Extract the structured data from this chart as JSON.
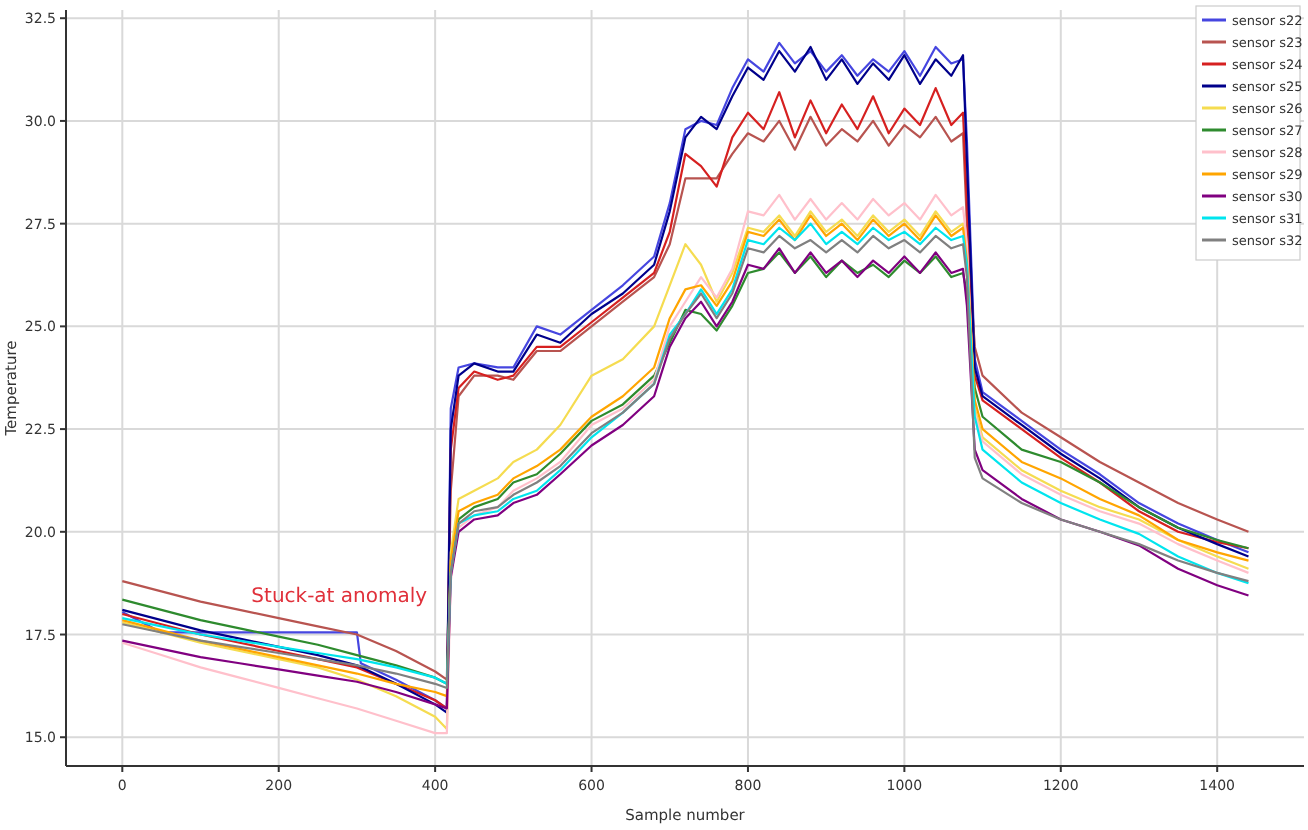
{
  "chart_data": {
    "type": "line",
    "xlabel": "Sample number",
    "ylabel": "Temperature",
    "xlim": [
      -72,
      1511
    ],
    "ylim": [
      14.3,
      32.7
    ],
    "xticks": [
      0,
      200,
      400,
      600,
      800,
      1000,
      1200,
      1400
    ],
    "yticks": [
      {
        "value": 15,
        "label": "15.0"
      },
      {
        "value": 17.5,
        "label": "17.5"
      },
      {
        "value": 20,
        "label": "20.0"
      },
      {
        "value": 22.5,
        "label": "22.5"
      },
      {
        "value": 25,
        "label": "25.0"
      },
      {
        "value": 27.5,
        "label": "27.5"
      },
      {
        "value": 30,
        "label": "30.0"
      },
      {
        "value": 32.5,
        "label": "32.5"
      }
    ],
    "grid": true,
    "legend": "top right",
    "line_style": "solid",
    "marker": "none",
    "annotations": [
      {
        "text": "Stuck-at anomaly",
        "x": 165,
        "y": 18.3
      }
    ],
    "x": [
      0,
      50,
      100,
      150,
      200,
      250,
      300,
      350,
      400,
      415,
      420,
      430,
      450,
      480,
      500,
      530,
      560,
      600,
      640,
      680,
      700,
      720,
      740,
      760,
      780,
      800,
      820,
      840,
      860,
      880,
      900,
      920,
      940,
      960,
      980,
      1000,
      1020,
      1040,
      1060,
      1075,
      1080,
      1090,
      1100,
      1150,
      1200,
      1250,
      1300,
      1350,
      1400,
      1440
    ],
    "series": [
      {
        "name": "sensor s22",
        "color": "#4646e0",
        "x": [
          0,
          50,
          100,
          150,
          200,
          250,
          300,
          305,
          350,
          400,
          415,
          420,
          430,
          450,
          480,
          500,
          530,
          560,
          600,
          640,
          680,
          700,
          720,
          740,
          760,
          780,
          800,
          820,
          840,
          860,
          880,
          900,
          920,
          940,
          960,
          980,
          1000,
          1020,
          1040,
          1060,
          1075,
          1080,
          1090,
          1100,
          1150,
          1200,
          1250,
          1300,
          1350,
          1400,
          1440
        ],
        "values": [
          18.05,
          17.55,
          17.55,
          17.55,
          17.55,
          17.55,
          17.55,
          16.8,
          16.4,
          15.9,
          15.7,
          23.0,
          24.0,
          24.1,
          24.0,
          24.0,
          25.0,
          24.8,
          25.4,
          26.0,
          26.7,
          28.0,
          29.8,
          30.0,
          29.9,
          30.8,
          31.5,
          31.2,
          31.9,
          31.4,
          31.7,
          31.2,
          31.6,
          31.1,
          31.5,
          31.2,
          31.7,
          31.1,
          31.8,
          31.4,
          31.5,
          29.5,
          24.2,
          23.4,
          22.7,
          22.0,
          21.4,
          20.7,
          20.2,
          19.8,
          19.5
        ]
      },
      {
        "name": "sensor s23",
        "color": "#b85450",
        "values": [
          18.8,
          18.55,
          18.3,
          18.1,
          17.9,
          17.7,
          17.5,
          17.1,
          16.6,
          16.4,
          21.0,
          23.3,
          23.8,
          23.8,
          23.7,
          24.4,
          24.4,
          25.0,
          25.6,
          26.2,
          27.0,
          28.6,
          28.6,
          28.6,
          29.2,
          29.7,
          29.5,
          30.0,
          29.3,
          30.1,
          29.4,
          29.8,
          29.5,
          30.0,
          29.4,
          29.9,
          29.6,
          30.1,
          29.5,
          29.7,
          27.5,
          24.5,
          23.8,
          22.9,
          22.3,
          21.7,
          21.2,
          20.7,
          20.3,
          20.0
        ]
      },
      {
        "name": "sensor s24",
        "color": "#d62020",
        "values": [
          18.0,
          17.75,
          17.5,
          17.3,
          17.1,
          16.9,
          16.7,
          16.3,
          15.9,
          15.7,
          22.0,
          23.5,
          23.9,
          23.7,
          23.8,
          24.5,
          24.5,
          25.1,
          25.7,
          26.3,
          27.3,
          29.2,
          28.9,
          28.4,
          29.6,
          30.2,
          29.8,
          30.7,
          29.6,
          30.5,
          29.7,
          30.4,
          29.8,
          30.6,
          29.7,
          30.3,
          29.9,
          30.8,
          29.9,
          30.2,
          28.0,
          23.8,
          23.2,
          22.5,
          21.8,
          21.2,
          20.5,
          20.0,
          19.75,
          19.6
        ]
      },
      {
        "name": "sensor s25",
        "color": "#00008b",
        "values": [
          18.1,
          17.85,
          17.6,
          17.4,
          17.2,
          17.0,
          16.75,
          16.3,
          15.8,
          15.6,
          22.5,
          23.8,
          24.1,
          23.9,
          23.9,
          24.8,
          24.6,
          25.3,
          25.8,
          26.5,
          27.8,
          29.6,
          30.1,
          29.8,
          30.6,
          31.3,
          31.0,
          31.7,
          31.2,
          31.8,
          31.0,
          31.5,
          30.9,
          31.4,
          31.0,
          31.6,
          30.9,
          31.5,
          31.1,
          31.6,
          29.0,
          24.0,
          23.3,
          22.6,
          21.9,
          21.3,
          20.6,
          20.1,
          19.7,
          19.4
        ]
      },
      {
        "name": "sensor s26",
        "color": "#f5dc50",
        "values": [
          17.8,
          17.55,
          17.3,
          17.1,
          16.9,
          16.7,
          16.4,
          16.0,
          15.5,
          15.2,
          19.5,
          20.8,
          21.0,
          21.3,
          21.7,
          22.0,
          22.6,
          23.8,
          24.2,
          25.0,
          26.0,
          27.0,
          26.5,
          25.6,
          26.3,
          27.4,
          27.3,
          27.7,
          27.2,
          27.8,
          27.3,
          27.6,
          27.2,
          27.7,
          27.3,
          27.6,
          27.2,
          27.8,
          27.3,
          27.5,
          26.8,
          23.0,
          22.3,
          21.5,
          21.0,
          20.6,
          20.3,
          19.8,
          19.4,
          19.1
        ]
      },
      {
        "name": "sensor s27",
        "color": "#2e8b2e",
        "values": [
          18.35,
          18.1,
          17.85,
          17.65,
          17.45,
          17.25,
          17.0,
          16.75,
          16.45,
          16.3,
          19.2,
          20.3,
          20.6,
          20.8,
          21.2,
          21.4,
          21.9,
          22.7,
          23.1,
          23.8,
          24.6,
          25.4,
          25.3,
          24.9,
          25.5,
          26.3,
          26.4,
          26.8,
          26.3,
          26.7,
          26.2,
          26.6,
          26.3,
          26.5,
          26.2,
          26.6,
          26.3,
          26.7,
          26.2,
          26.3,
          25.8,
          23.5,
          22.8,
          22.0,
          21.7,
          21.2,
          20.6,
          20.1,
          19.8,
          19.6
        ]
      },
      {
        "name": "sensor s28",
        "color": "#ffc0cb",
        "values": [
          17.3,
          17.0,
          16.7,
          16.45,
          16.2,
          15.95,
          15.7,
          15.4,
          15.1,
          15.1,
          18.8,
          20.1,
          20.4,
          20.6,
          21.0,
          21.3,
          21.7,
          22.6,
          23.0,
          23.7,
          25.0,
          25.6,
          26.2,
          25.7,
          26.4,
          27.8,
          27.7,
          28.2,
          27.6,
          28.1,
          27.6,
          28.0,
          27.6,
          28.1,
          27.7,
          28.0,
          27.6,
          28.2,
          27.7,
          27.9,
          27.0,
          22.9,
          22.2,
          21.4,
          20.9,
          20.5,
          20.2,
          19.7,
          19.3,
          19.0
        ]
      },
      {
        "name": "sensor s29",
        "color": "#ffa500",
        "values": [
          17.85,
          17.6,
          17.35,
          17.15,
          16.95,
          16.75,
          16.55,
          16.3,
          16.1,
          16.0,
          19.3,
          20.5,
          20.7,
          20.9,
          21.3,
          21.6,
          22.0,
          22.8,
          23.3,
          24.0,
          25.2,
          25.9,
          26.0,
          25.5,
          26.1,
          27.3,
          27.2,
          27.6,
          27.1,
          27.7,
          27.2,
          27.5,
          27.1,
          27.6,
          27.2,
          27.5,
          27.1,
          27.7,
          27.2,
          27.4,
          26.6,
          23.2,
          22.5,
          21.7,
          21.3,
          20.8,
          20.4,
          19.8,
          19.5,
          19.3
        ]
      },
      {
        "name": "sensor s30",
        "color": "#800080",
        "values": [
          17.35,
          17.15,
          16.95,
          16.8,
          16.65,
          16.5,
          16.35,
          16.1,
          15.8,
          15.7,
          18.9,
          20.0,
          20.3,
          20.4,
          20.7,
          20.9,
          21.4,
          22.1,
          22.6,
          23.3,
          24.5,
          25.2,
          25.6,
          25.0,
          25.6,
          26.5,
          26.4,
          26.9,
          26.3,
          26.8,
          26.3,
          26.6,
          26.2,
          26.6,
          26.3,
          26.7,
          26.3,
          26.8,
          26.3,
          26.4,
          25.5,
          22.0,
          21.5,
          20.8,
          20.3,
          20.0,
          19.67,
          19.1,
          18.7,
          18.45
        ]
      },
      {
        "name": "sensor s31",
        "color": "#00e5ee",
        "values": [
          17.9,
          17.7,
          17.5,
          17.35,
          17.2,
          17.05,
          16.9,
          16.7,
          16.45,
          16.3,
          19.0,
          20.2,
          20.4,
          20.5,
          20.8,
          21.0,
          21.5,
          22.3,
          22.9,
          23.6,
          24.8,
          25.3,
          25.9,
          25.3,
          25.9,
          27.1,
          27.0,
          27.4,
          27.1,
          27.5,
          27.0,
          27.3,
          27.0,
          27.4,
          27.1,
          27.3,
          27.0,
          27.4,
          27.1,
          27.2,
          26.5,
          22.8,
          22.0,
          21.2,
          20.7,
          20.3,
          19.95,
          19.4,
          19.0,
          18.75
        ]
      },
      {
        "name": "sensor s32",
        "color": "#808080",
        "values": [
          17.75,
          17.55,
          17.35,
          17.2,
          17.05,
          16.9,
          16.75,
          16.55,
          16.3,
          16.2,
          19.0,
          20.2,
          20.5,
          20.6,
          20.9,
          21.2,
          21.6,
          22.4,
          22.9,
          23.6,
          24.7,
          25.3,
          25.8,
          25.2,
          25.8,
          26.9,
          26.8,
          27.2,
          26.9,
          27.1,
          26.8,
          27.1,
          26.8,
          27.2,
          26.9,
          27.1,
          26.8,
          27.2,
          26.9,
          27.0,
          26.2,
          21.8,
          21.3,
          20.7,
          20.3,
          20.0,
          19.7,
          19.3,
          19.0,
          18.8
        ]
      }
    ]
  }
}
